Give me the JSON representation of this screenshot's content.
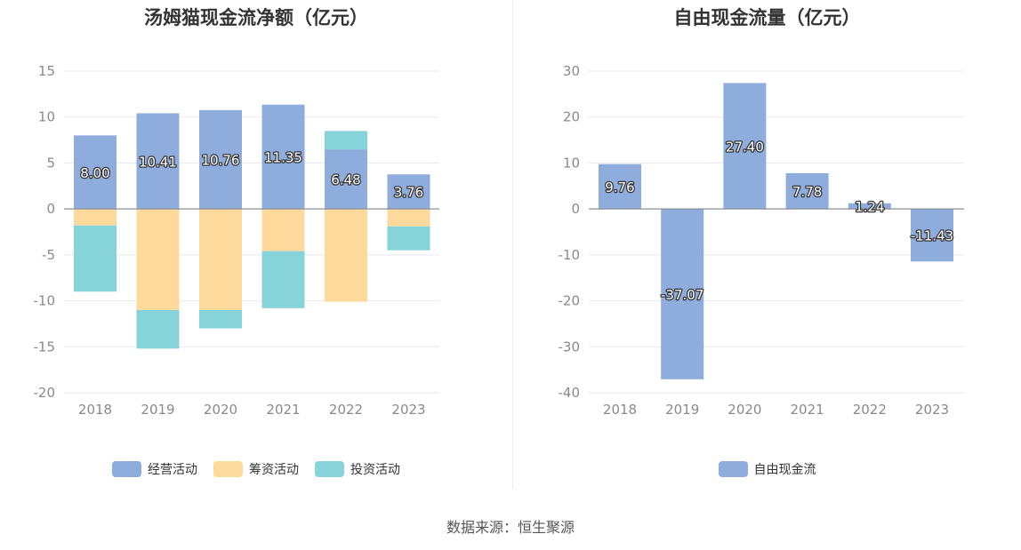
{
  "colors": {
    "operating": "#8eacdc",
    "financing": "#fed99c",
    "investing": "#86d4d9",
    "fcf": "#8eacdc"
  },
  "footer": {
    "source": "数据来源：恒生聚源"
  },
  "chart_data": [
    {
      "type": "bar",
      "stacked": true,
      "title": "汤姆猫现金流净额（亿元）",
      "categories": [
        "2018",
        "2019",
        "2020",
        "2021",
        "2022",
        "2023"
      ],
      "ylim": [
        -20,
        15
      ],
      "yticks": [
        15,
        10,
        5,
        0,
        -5,
        -10,
        -15,
        -20
      ],
      "grid": true,
      "legend_position": "bottom",
      "series": [
        {
          "name": "经营活动",
          "color": "#8eacdc",
          "values": [
            8.0,
            10.41,
            10.76,
            11.35,
            6.48,
            3.76
          ],
          "labels": [
            "8.00",
            "10.41",
            "10.76",
            "11.35",
            "6.48",
            "3.76"
          ]
        },
        {
          "name": "筹资活动",
          "color": "#fed99c",
          "values": [
            -1.8,
            -11.0,
            -11.0,
            -4.6,
            -10.1,
            -1.9
          ]
        },
        {
          "name": "投资活动",
          "color": "#86d4d9",
          "values": [
            -7.2,
            -4.2,
            -2.0,
            -6.2,
            2.0,
            -2.6
          ]
        }
      ]
    },
    {
      "type": "bar",
      "title": "自由现金流量（亿元）",
      "categories": [
        "2018",
        "2019",
        "2020",
        "2021",
        "2022",
        "2023"
      ],
      "ylim": [
        -40,
        30
      ],
      "yticks": [
        30,
        20,
        10,
        0,
        -10,
        -20,
        -30,
        -40
      ],
      "grid": true,
      "legend_position": "bottom",
      "series": [
        {
          "name": "自由现金流",
          "color": "#8eacdc",
          "values": [
            9.76,
            -37.07,
            27.4,
            7.78,
            1.24,
            -11.43
          ],
          "labels": [
            "9.76",
            "-37.07",
            "27.40",
            "7.78",
            "1.24",
            "-11.43"
          ]
        }
      ]
    }
  ]
}
